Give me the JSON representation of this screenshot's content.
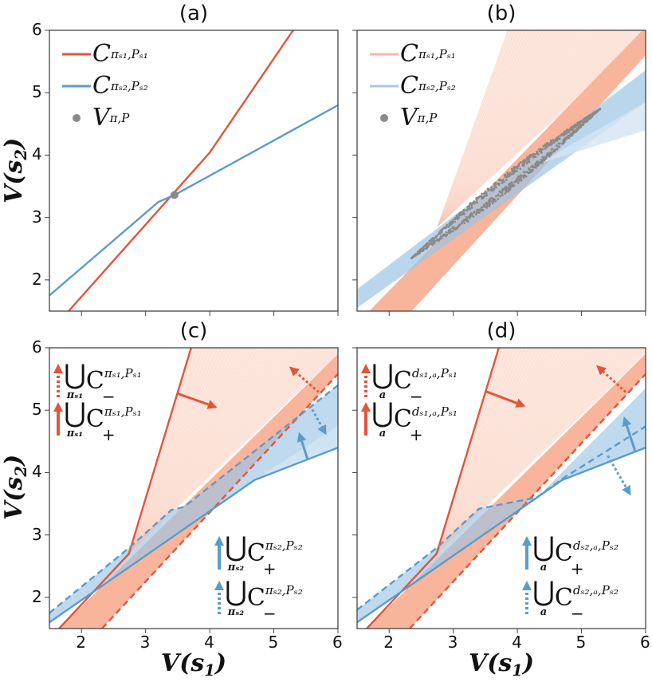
{
  "axis_labels": {
    "y": "V(s",
    "y_sub": "2",
    "y_close": ")",
    "x": "V(s",
    "x_sub": "1",
    "x_close": ")"
  },
  "colors": {
    "red": "#e2553b",
    "blue": "#5a9ccc",
    "red_light": "#f6b9a6",
    "blue_light": "#a8c9e6",
    "red_band": "#f8b196",
    "red_fan": "#fde6dd",
    "blue_band": "#9dc4e6",
    "gray": "#8a8a8a"
  },
  "chart_data": [
    {
      "panel": "a",
      "title": "(a)",
      "type": "line",
      "xlim": [
        1.5,
        6
      ],
      "ylim": [
        1.5,
        6
      ],
      "xticks": [
        2,
        3,
        4,
        5,
        6
      ],
      "yticks": [
        2,
        3,
        4,
        5,
        6
      ],
      "show_xtick_labels": false,
      "show_ytick_labels": true,
      "grid": false,
      "regions": [],
      "series": [
        {
          "name": "C^{π s1, P s1}",
          "color": "#e2553b",
          "style": "solid",
          "points": [
            [
              1.8,
              1.5
            ],
            [
              4.0,
              4.04
            ],
            [
              5.3,
              6.0
            ]
          ]
        },
        {
          "name": "C^{π s2, P s2}",
          "color": "#5a9ccc",
          "style": "solid",
          "points": [
            [
              1.5,
              1.75
            ],
            [
              3.2,
              3.25
            ],
            [
              3.45,
              3.36
            ],
            [
              6.0,
              4.8
            ]
          ]
        }
      ],
      "scatter": [
        {
          "name": "V^{π, P}",
          "color": "#8a8a8a",
          "points": [
            [
              3.45,
              3.36
            ]
          ]
        }
      ],
      "legend": {
        "placement": "upper-left",
        "entries": [
          {
            "marker": "line",
            "color": "#e2553b",
            "base": "C",
            "sup": "πₛ₁,Pₛ₁"
          },
          {
            "marker": "line",
            "color": "#5a9ccc",
            "base": "C",
            "sup": "πₛ₂,Pₛ₂"
          },
          {
            "marker": "dot",
            "color": "#8a8a8a",
            "base": "V",
            "sup": "π,P"
          }
        ]
      },
      "arrows": [],
      "annotations": []
    },
    {
      "panel": "b",
      "title": "(b)",
      "type": "area",
      "xlim": [
        1.5,
        6
      ],
      "ylim": [
        1.5,
        6
      ],
      "xticks": [
        2,
        3,
        4,
        5,
        6
      ],
      "yticks": [
        2,
        3,
        4,
        5,
        6
      ],
      "show_xtick_labels": false,
      "show_ytick_labels": false,
      "grid": false,
      "regions": [
        {
          "color": "#fde6dd",
          "opacity": 1,
          "points": [
            [
              2.75,
              2.85
            ],
            [
              3.85,
              6
            ],
            [
              6,
              6
            ],
            [
              6,
              5.9
            ]
          ]
        },
        {
          "color": "#f8b196",
          "opacity": 0.95,
          "points": [
            [
              1.69,
              1.5
            ],
            [
              2.35,
              1.5
            ],
            [
              6,
              5.6
            ],
            [
              6,
              6
            ],
            [
              5.95,
              6
            ]
          ]
        },
        {
          "color": "#9dc4e6",
          "opacity": 0.7,
          "points": [
            [
              1.5,
              1.55
            ],
            [
              1.5,
              1.85
            ],
            [
              6,
              5.36
            ],
            [
              6,
              4.85
            ]
          ]
        },
        {
          "color": "#d5e5f3",
          "opacity": 0.8,
          "points": [
            [
              4.3,
              3.85
            ],
            [
              6,
              4.85
            ],
            [
              6,
              4.4
            ]
          ]
        }
      ],
      "series": [],
      "point_cloud": {
        "color": "#8a8a8a",
        "from": [
          2.35,
          2.35
        ],
        "to": [
          5.3,
          4.75
        ],
        "half_width": 0.16
      },
      "legend": {
        "placement": "upper-left",
        "entries": [
          {
            "marker": "line",
            "color": "#f6b9a6",
            "base": "C",
            "sup": "πₛ₁,Pₛ₁"
          },
          {
            "marker": "line",
            "color": "#a8c9e6",
            "base": "C",
            "sup": "πₛ₂,Pₛ₂"
          },
          {
            "marker": "dot",
            "color": "#8a8a8a",
            "base": "V",
            "sup": "π,P"
          }
        ]
      },
      "arrows": [],
      "annotations": []
    },
    {
      "panel": "c",
      "title": "(c)",
      "type": "line",
      "xlim": [
        1.5,
        6
      ],
      "ylim": [
        1.5,
        6
      ],
      "xticks": [
        2,
        3,
        4,
        5,
        6
      ],
      "yticks": [
        2,
        3,
        4,
        5,
        6
      ],
      "show_xtick_labels": true,
      "show_ytick_labels": true,
      "grid": false,
      "regions": [
        {
          "color": "#fde6dd",
          "opacity": 1,
          "points": [
            [
              2.74,
              2.7
            ],
            [
              3.71,
              6
            ],
            [
              6,
              6
            ],
            [
              6,
              5.9
            ]
          ]
        },
        {
          "color": "#f8b196",
          "opacity": 0.95,
          "points": [
            [
              1.65,
              1.5
            ],
            [
              2.32,
              1.5
            ],
            [
              6,
              5.58
            ],
            [
              6,
              5.9
            ]
          ]
        },
        {
          "color": "#9dc4e6",
          "opacity": 0.65,
          "points": [
            [
              1.5,
              1.6
            ],
            [
              1.5,
              1.75
            ],
            [
              2.75,
              2.8
            ],
            [
              3.4,
              3.4
            ],
            [
              3.6,
              3.45
            ],
            [
              6,
              5.4
            ],
            [
              6,
              4.4
            ],
            [
              4.7,
              3.88
            ]
          ]
        },
        {
          "color": "#d5e5f3",
          "opacity": 0.8,
          "points": [
            [
              4.7,
              3.88
            ],
            [
              6,
              4.75
            ],
            [
              6,
              4.4
            ]
          ]
        }
      ],
      "series": [
        {
          "color": "#e2553b",
          "style": "solid",
          "points": [
            [
              1.65,
              1.5
            ],
            [
              2.74,
              2.7
            ],
            [
              3.71,
              6
            ]
          ]
        },
        {
          "color": "#e2553b",
          "style": "dashed",
          "points": [
            [
              2.32,
              1.5
            ],
            [
              6,
              5.58
            ]
          ]
        },
        {
          "color": "#5a9ccc",
          "style": "solid",
          "points": [
            [
              1.5,
              1.6
            ],
            [
              4.7,
              3.88
            ],
            [
              6,
              4.4
            ]
          ]
        },
        {
          "color": "#5a9ccc",
          "style": "dashed",
          "points": [
            [
              1.5,
              1.75
            ],
            [
              2.75,
              2.8
            ],
            [
              3.4,
              3.4
            ],
            [
              3.6,
              3.45
            ],
            [
              6,
              5.4
            ]
          ]
        }
      ],
      "arrows": [
        {
          "color": "#e2553b",
          "style": "solid",
          "from": [
            3.49,
            5.27
          ],
          "to": [
            4.12,
            5.04
          ]
        },
        {
          "color": "#e2553b",
          "style": "dotted",
          "from": [
            5.7,
            5.29
          ],
          "to": [
            5.24,
            5.7
          ]
        },
        {
          "color": "#5a9ccc",
          "style": "solid",
          "from": [
            5.53,
            4.2
          ],
          "to": [
            5.39,
            4.65
          ]
        },
        {
          "color": "#5a9ccc",
          "style": "dotted",
          "from": [
            5.6,
            5.01
          ],
          "to": [
            5.82,
            4.6
          ]
        }
      ],
      "annotations": [
        {
          "arrow": "dotted",
          "color": "#e2553b",
          "union_sub": "πₛ₁",
          "base": "C",
          "sup": "πₛ₁,Pₛ₁",
          "sub": "−",
          "anchor": "top-left-1"
        },
        {
          "arrow": "solid",
          "color": "#e2553b",
          "union_sub": "πₛ₁",
          "base": "C",
          "sup": "πₛ₁,Pₛ₁",
          "sub": "+",
          "anchor": "top-left-2"
        },
        {
          "arrow": "solid",
          "color": "#5a9ccc",
          "union_sub": "πₛ₂",
          "base": "C",
          "sup": "πₛ₂,Pₛ₂",
          "sub": "+",
          "anchor": "bottom-right-1"
        },
        {
          "arrow": "dotted",
          "color": "#5a9ccc",
          "union_sub": "πₛ₂",
          "base": "C",
          "sup": "πₛ₂,Pₛ₂",
          "sub": "−",
          "anchor": "bottom-right-2"
        }
      ]
    },
    {
      "panel": "d",
      "title": "(d)",
      "type": "line",
      "xlim": [
        1.5,
        6
      ],
      "ylim": [
        1.5,
        6
      ],
      "xticks": [
        2,
        3,
        4,
        5,
        6
      ],
      "yticks": [
        2,
        3,
        4,
        5,
        6
      ],
      "show_xtick_labels": true,
      "show_ytick_labels": false,
      "grid": false,
      "regions": [
        {
          "color": "#fde6dd",
          "opacity": 1,
          "points": [
            [
              2.74,
              2.7
            ],
            [
              3.71,
              6
            ],
            [
              6,
              6
            ],
            [
              6,
              5.9
            ]
          ]
        },
        {
          "color": "#f8b196",
          "opacity": 0.95,
          "points": [
            [
              1.65,
              1.5
            ],
            [
              2.32,
              1.5
            ],
            [
              6,
              5.58
            ],
            [
              6,
              5.9
            ]
          ]
        },
        {
          "color": "#9dc4e6",
          "opacity": 0.65,
          "points": [
            [
              1.5,
              1.6
            ],
            [
              1.5,
              1.8
            ],
            [
              2.75,
              2.8
            ],
            [
              3.4,
              3.42
            ],
            [
              4.3,
              3.6
            ],
            [
              4.5,
              3.8
            ],
            [
              6,
              5.35
            ],
            [
              6,
              4.4
            ],
            [
              4.7,
              3.88
            ]
          ]
        }
      ],
      "series": [
        {
          "color": "#e2553b",
          "style": "solid",
          "points": [
            [
              1.65,
              1.5
            ],
            [
              2.74,
              2.7
            ],
            [
              3.71,
              6
            ]
          ]
        },
        {
          "color": "#e2553b",
          "style": "dashed",
          "points": [
            [
              2.32,
              1.5
            ],
            [
              6,
              5.58
            ]
          ]
        },
        {
          "color": "#5a9ccc",
          "style": "solid",
          "points": [
            [
              1.5,
              1.6
            ],
            [
              4.7,
              3.88
            ],
            [
              6,
              4.4
            ]
          ]
        },
        {
          "color": "#5a9ccc",
          "style": "dashed",
          "points": [
            [
              1.5,
              1.8
            ],
            [
              2.75,
              2.8
            ],
            [
              3.4,
              3.42
            ],
            [
              4.3,
              3.6
            ],
            [
              4.7,
              3.9
            ],
            [
              6,
              4.74
            ]
          ]
        }
      ],
      "arrows": [
        {
          "color": "#e2553b",
          "style": "solid",
          "from": [
            3.51,
            5.3
          ],
          "to": [
            4.13,
            5.06
          ]
        },
        {
          "color": "#e2553b",
          "style": "dotted",
          "from": [
            5.69,
            5.29
          ],
          "to": [
            5.23,
            5.72
          ]
        },
        {
          "color": "#5a9ccc",
          "style": "solid",
          "from": [
            5.84,
            4.33
          ],
          "to": [
            5.66,
            4.9
          ]
        },
        {
          "color": "#5a9ccc",
          "style": "dotted",
          "from": [
            5.41,
            4.27
          ],
          "to": [
            5.77,
            3.63
          ]
        }
      ],
      "annotations": [
        {
          "arrow": "dotted",
          "color": "#e2553b",
          "union_sub": "a",
          "base": "C",
          "sup": "dₛ₁,ₐ,Pₛ₁",
          "sub": "−",
          "anchor": "top-left-1"
        },
        {
          "arrow": "solid",
          "color": "#e2553b",
          "union_sub": "a",
          "base": "C",
          "sup": "dₛ₁,ₐ,Pₛ₁",
          "sub": "+",
          "anchor": "top-left-2"
        },
        {
          "arrow": "solid",
          "color": "#5a9ccc",
          "union_sub": "a",
          "base": "C",
          "sup": "dₛ₂,ₐ,Pₛ₂",
          "sub": "+",
          "anchor": "bottom-right-1"
        },
        {
          "arrow": "dotted",
          "color": "#5a9ccc",
          "union_sub": "a",
          "base": "C",
          "sup": "dₛ₂,ₐ,Pₛ₂",
          "sub": "−",
          "anchor": "bottom-right-2"
        }
      ]
    }
  ]
}
